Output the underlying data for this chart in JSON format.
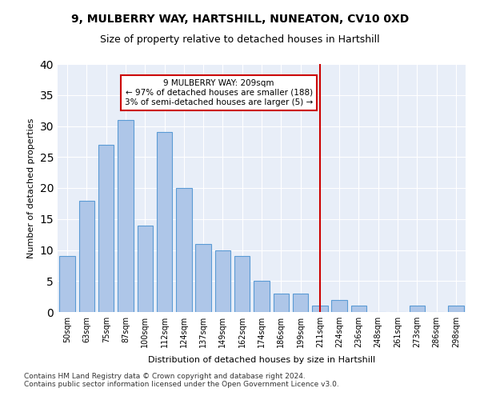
{
  "title": "9, MULBERRY WAY, HARTSHILL, NUNEATON, CV10 0XD",
  "subtitle": "Size of property relative to detached houses in Hartshill",
  "xlabel": "Distribution of detached houses by size in Hartshill",
  "ylabel": "Number of detached properties",
  "bin_labels": [
    "50sqm",
    "63sqm",
    "75sqm",
    "87sqm",
    "100sqm",
    "112sqm",
    "124sqm",
    "137sqm",
    "149sqm",
    "162sqm",
    "174sqm",
    "186sqm",
    "199sqm",
    "211sqm",
    "224sqm",
    "236sqm",
    "248sqm",
    "261sqm",
    "273sqm",
    "286sqm",
    "298sqm"
  ],
  "values": [
    9,
    18,
    27,
    31,
    14,
    29,
    20,
    11,
    10,
    9,
    5,
    3,
    3,
    1,
    2,
    1,
    0,
    0,
    1,
    0,
    1
  ],
  "bar_color": "#aec6e8",
  "bar_edge_color": "#5b9bd5",
  "ylim": [
    0,
    40
  ],
  "yticks": [
    0,
    5,
    10,
    15,
    20,
    25,
    30,
    35,
    40
  ],
  "vline_color": "#cc0000",
  "vline_pos": 13.0,
  "annotation_text": "9 MULBERRY WAY: 209sqm\n← 97% of detached houses are smaller (188)\n3% of semi-detached houses are larger (5) →",
  "annotation_box_color": "#cc0000",
  "background_color": "#e8eef8",
  "footer_text": "Contains HM Land Registry data © Crown copyright and database right 2024.\nContains public sector information licensed under the Open Government Licence v3.0."
}
